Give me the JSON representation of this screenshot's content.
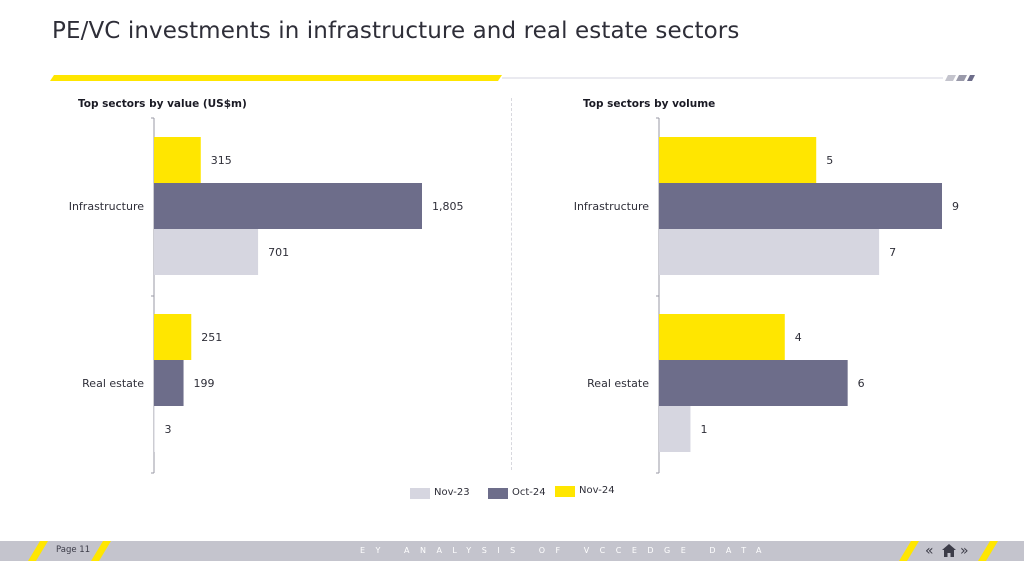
{
  "page": {
    "title": "PE/VC investments in infrastructure and real estate sectors"
  },
  "colors": {
    "nov24": "#ffe600",
    "oct24": "#6d6d8a",
    "nov23": "#d6d6e0",
    "accent": "#ffe600",
    "footer": "#c4c4cd"
  },
  "chart_data": [
    {
      "type": "bar",
      "orientation": "horizontal",
      "title": "Top sectors by value (US$m)",
      "categories": [
        "Infrastructure",
        "Real estate"
      ],
      "series": [
        {
          "name": "Nov-24",
          "values": [
            315,
            251
          ],
          "labels": [
            "315",
            "251"
          ],
          "color": "#ffe600"
        },
        {
          "name": "Oct-24",
          "values": [
            1805,
            199
          ],
          "labels": [
            "1,805",
            "199"
          ],
          "color": "#6d6d8a"
        },
        {
          "name": "Nov-23",
          "values": [
            701,
            3
          ],
          "labels": [
            "701",
            "3"
          ],
          "color": "#d6d6e0"
        }
      ],
      "xlim": [
        0,
        2000
      ],
      "grid": false,
      "legend": "bottom-center"
    },
    {
      "type": "bar",
      "orientation": "horizontal",
      "title": "Top sectors by volume",
      "categories": [
        "Infrastructure",
        "Real estate"
      ],
      "series": [
        {
          "name": "Nov-24",
          "values": [
            5,
            4
          ],
          "labels": [
            "5",
            "4"
          ],
          "color": "#ffe600"
        },
        {
          "name": "Oct-24",
          "values": [
            9,
            6
          ],
          "labels": [
            "9",
            "6"
          ],
          "color": "#6d6d8a"
        },
        {
          "name": "Nov-23",
          "values": [
            7,
            1
          ],
          "labels": [
            "7",
            "1"
          ],
          "color": "#d6d6e0"
        }
      ],
      "xlim": [
        0,
        10
      ],
      "grid": false,
      "legend": "bottom-center"
    }
  ],
  "legend": {
    "items": [
      {
        "label": "Nov-23",
        "color": "#d6d6e0"
      },
      {
        "label": "Oct-24",
        "color": "#6d6d8a"
      },
      {
        "label": "Nov-24",
        "color": "#ffe600"
      }
    ]
  },
  "footer": {
    "page_label": "Page 11",
    "text": "EY ANALYSIS OF VCCEDGE DATA",
    "nav": {
      "prev_icon": "double-chevron-left-icon",
      "home_icon": "home-icon",
      "next_icon": "double-chevron-right-icon"
    }
  }
}
